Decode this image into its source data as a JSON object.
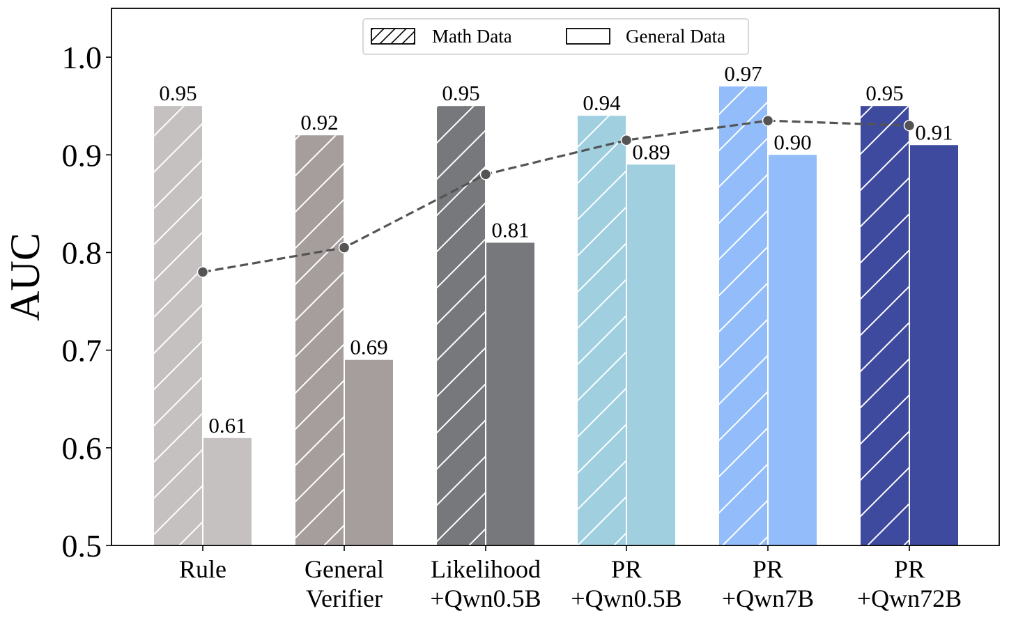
{
  "chart_data": {
    "type": "bar",
    "ylabel": "AUC",
    "xlabel": "",
    "title": "",
    "ylim": [
      0.5,
      1.05
    ],
    "yticks": [
      "0.5",
      "0.6",
      "0.7",
      "0.8",
      "0.9",
      "1.0"
    ],
    "categories": [
      [
        "Rule"
      ],
      [
        "General",
        "Verifier"
      ],
      [
        "Likelihood",
        "+Qwn0.5B"
      ],
      [
        "PR",
        "+Qwn0.5B"
      ],
      [
        "PR",
        "+Qwn7B"
      ],
      [
        "PR",
        "+Qwn72B"
      ]
    ],
    "series": [
      {
        "name": "Math Data",
        "pattern": "hatched",
        "values": [
          0.95,
          0.92,
          0.95,
          0.94,
          0.97,
          0.95
        ],
        "labels": [
          "0.95",
          "0.92",
          "0.95",
          "0.94",
          "0.97",
          "0.95"
        ]
      },
      {
        "name": "General Data",
        "pattern": "solid",
        "values": [
          0.61,
          0.69,
          0.81,
          0.89,
          0.9,
          0.91
        ],
        "labels": [
          "0.61",
          "0.69",
          "0.81",
          "0.89",
          "0.90",
          "0.91"
        ]
      }
    ],
    "average_line": {
      "style": "dashed",
      "values": [
        0.78,
        0.805,
        0.88,
        0.915,
        0.935,
        0.93
      ]
    },
    "category_colors": [
      "#c4c1c0",
      "#a69e9d",
      "#76787c",
      "#a0cfe0",
      "#93bdfa",
      "#3e4a9e"
    ],
    "line_color": "#545454",
    "legend_position": "top-center",
    "grid": false
  }
}
